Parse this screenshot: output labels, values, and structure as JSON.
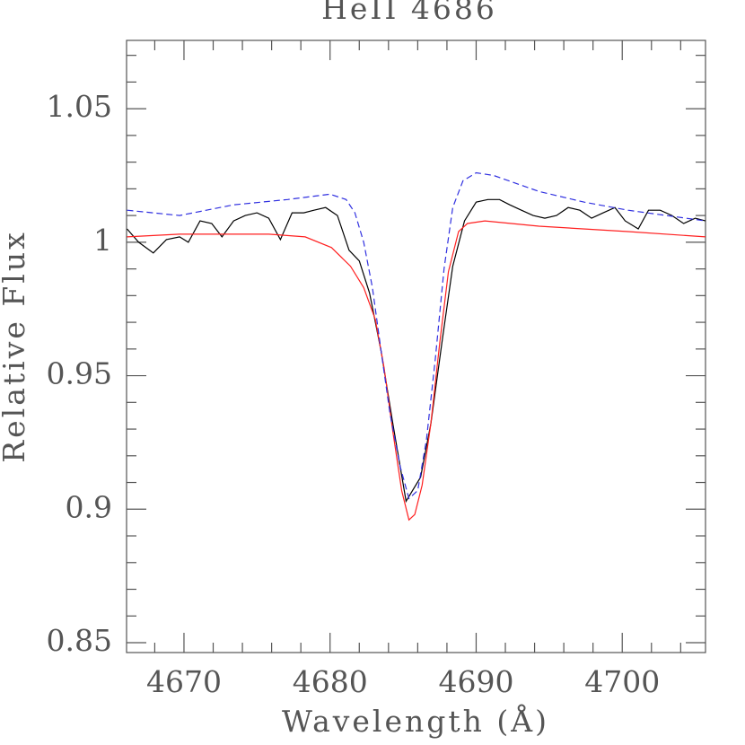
{
  "chart_data": {
    "type": "line",
    "title": "HeII 4686",
    "x_label": "Wavelength (Å)",
    "y_label": "Relative Flux",
    "xlim": [
      4666.07,
      4705.7
    ],
    "ylim": [
      0.8463,
      1.0756
    ],
    "xticks": [
      4670,
      4680,
      4690,
      4700
    ],
    "yticks": [
      0.85,
      0.9,
      0.95,
      1,
      1.05
    ],
    "xminorticks": [
      4668,
      4672,
      4674,
      4676,
      4678,
      4682,
      4684,
      4686,
      4688,
      4692,
      4694,
      4696,
      4698,
      4702,
      4704
    ],
    "yminorticks": [
      0.86,
      0.87,
      0.88,
      0.89,
      0.91,
      0.92,
      0.93,
      0.94,
      0.96,
      0.97,
      0.98,
      0.99,
      1.01,
      1.02,
      1.03,
      1.04,
      1.06,
      1.07
    ],
    "series": [
      {
        "color": "#000000",
        "dashed": false,
        "x": [
          4666.1,
          4666.9,
          4667.9,
          4668.8,
          4669.7,
          4670.3,
          4671.1,
          4671.9,
          4672.6,
          4673.4,
          4674.2,
          4675.0,
          4675.8,
          4676.6,
          4677.4,
          4678.2,
          4678.9,
          4679.7,
          4680.5,
          4681.3,
          4682.0,
          4682.7,
          4683.5,
          4684.3,
          4685.2,
          4686.2,
          4686.9,
          4687.7,
          4688.4,
          4689.2,
          4690.0,
          4690.8,
          4691.6,
          4692.3,
          4693.1,
          4693.9,
          4694.7,
          4695.5,
          4696.3,
          4697.1,
          4697.9,
          4698.7,
          4699.5,
          4700.2,
          4701.1,
          4701.8,
          4702.6,
          4703.4,
          4704.2,
          4705.0,
          4705.7
        ],
        "values": [
          1.005,
          1.0,
          0.996,
          1.001,
          1.002,
          1.0,
          1.008,
          1.007,
          1.002,
          1.008,
          1.01,
          1.011,
          1.009,
          1.001,
          1.011,
          1.011,
          1.012,
          1.013,
          1.01,
          0.997,
          0.993,
          0.981,
          0.959,
          0.932,
          0.903,
          0.912,
          0.932,
          0.964,
          0.991,
          1.008,
          1.015,
          1.016,
          1.016,
          1.014,
          1.012,
          1.01,
          1.009,
          1.01,
          1.013,
          1.012,
          1.009,
          1.011,
          1.013,
          1.008,
          1.005,
          1.012,
          1.012,
          1.01,
          1.007,
          1.009,
          1.008
        ]
      },
      {
        "color": "#ff2020",
        "dashed": false,
        "x": [
          4666.1,
          4669.7,
          4675.8,
          4678.3,
          4680.1,
          4681.4,
          4682.3,
          4683.1,
          4683.7,
          4684.3,
          4684.9,
          4685.4,
          4685.8,
          4686.3,
          4686.9,
          4687.5,
          4688.1,
          4688.8,
          4689.4,
          4690.6,
          4694.3,
          4700.4,
          4705.7
        ],
        "values": [
          1.002,
          1.003,
          1.003,
          1.002,
          0.998,
          0.991,
          0.983,
          0.971,
          0.953,
          0.929,
          0.907,
          0.896,
          0.898,
          0.909,
          0.932,
          0.962,
          0.989,
          1.004,
          1.007,
          1.008,
          1.006,
          1.004,
          1.002
        ]
      },
      {
        "color": "#3030e0",
        "dashed": true,
        "x": [
          4666.1,
          4669.7,
          4673.4,
          4677.1,
          4680.0,
          4681.1,
          4681.7,
          4682.3,
          4682.9,
          4683.5,
          4684.1,
          4684.8,
          4685.4,
          4686.0,
          4686.6,
          4687.2,
          4687.8,
          4688.4,
          4689.1,
          4690.0,
          4691.2,
          4694.3,
          4697.4,
          4700.4,
          4705.7
        ],
        "values": [
          1.012,
          1.01,
          1.014,
          1.016,
          1.018,
          1.016,
          1.011,
          1.0,
          0.983,
          0.959,
          0.936,
          0.916,
          0.904,
          0.907,
          0.926,
          0.956,
          0.99,
          1.013,
          1.023,
          1.026,
          1.025,
          1.019,
          1.015,
          1.012,
          1.008
        ]
      }
    ]
  }
}
